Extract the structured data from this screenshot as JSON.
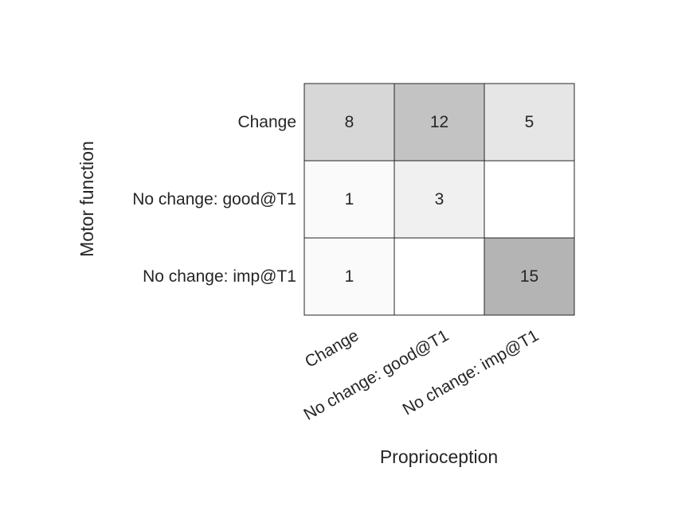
{
  "chart_data": {
    "type": "heatmap",
    "xlabel": "Proprioception",
    "ylabel": "Motor function",
    "x_categories": [
      "Change",
      "No change: good@T1",
      "No change: imp@T1"
    ],
    "y_categories": [
      "Change",
      "No change: good@T1",
      "No change: imp@T1"
    ],
    "values": [
      [
        8,
        12,
        5
      ],
      [
        1,
        3,
        null
      ],
      [
        1,
        null,
        15
      ]
    ],
    "colormap": "white-to-gray",
    "color_min": "#ffffff",
    "color_max": "#b4b4b4",
    "grid_color": "#262626",
    "text_color": "#262626"
  }
}
